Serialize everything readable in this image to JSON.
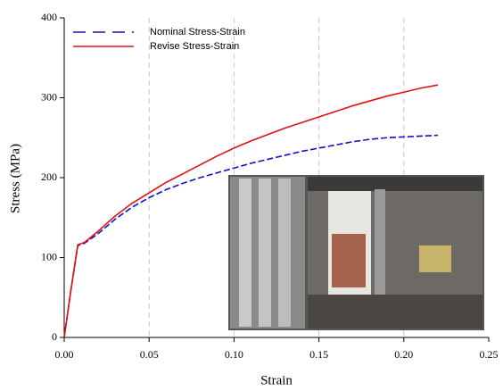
{
  "chart_data": {
    "type": "line",
    "xlabel": "Strain",
    "ylabel": "Stress (MPa)",
    "x": [
      0,
      0.004,
      0.008,
      0.012,
      0.02,
      0.03,
      0.04,
      0.05,
      0.06,
      0.07,
      0.08,
      0.09,
      0.1,
      0.11,
      0.12,
      0.13,
      0.14,
      0.15,
      0.16,
      0.17,
      0.18,
      0.19,
      0.2,
      0.21,
      0.22
    ],
    "series": [
      {
        "name": "Nominal Stress-Strain",
        "color": "#1010c8",
        "dash": true,
        "values": [
          0,
          60,
          115,
          118,
          130,
          148,
          163,
          175,
          185,
          193,
          200,
          206,
          212,
          218,
          223,
          228,
          233,
          237,
          241,
          245,
          248,
          250,
          251,
          252,
          253
        ]
      },
      {
        "name": "Revise Stress-Strain",
        "color": "#e01010",
        "dash": false,
        "values": [
          0,
          60,
          116,
          119,
          133,
          152,
          168,
          181,
          194,
          205,
          216,
          227,
          237,
          246,
          254,
          262,
          269,
          276,
          283,
          290,
          296,
          302,
          307,
          312,
          316
        ]
      }
    ],
    "xlim": [
      0,
      0.25
    ],
    "xticks": [
      {
        "value": 0,
        "label": "0.00"
      },
      {
        "value": 0.05,
        "label": "0.05"
      },
      {
        "value": 0.1,
        "label": "0.10"
      },
      {
        "value": 0.15,
        "label": "0.15"
      },
      {
        "value": 0.2,
        "label": "0.20"
      },
      {
        "value": 0.25,
        "label": "0.25"
      }
    ],
    "ylim": [
      0,
      400
    ],
    "yticks": [
      0,
      100,
      200,
      300,
      400
    ],
    "grid": "x",
    "legend": "upper left"
  }
}
